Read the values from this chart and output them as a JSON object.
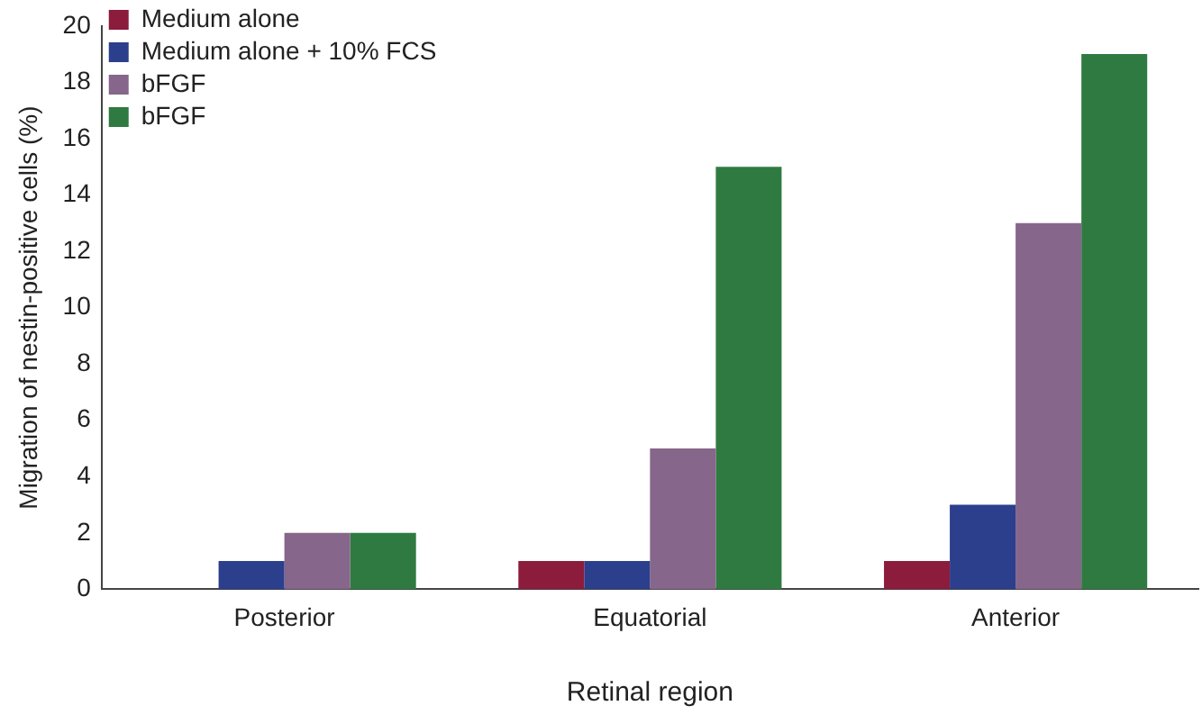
{
  "chart_data": {
    "type": "bar",
    "xlabel": "Retinal region",
    "ylabel": "Migration of nestin-positive cells (%)",
    "categories": [
      "Posterior",
      "Equatorial",
      "Anterior"
    ],
    "series": [
      {
        "name": "Medium alone",
        "color": "#8c1c3c",
        "values": [
          0,
          1,
          1
        ]
      },
      {
        "name": "Medium alone + 10% FCS",
        "color": "#2b3f8c",
        "values": [
          1,
          1,
          3
        ]
      },
      {
        "name": "bFGF",
        "color": "#86668a",
        "values": [
          2,
          5,
          13
        ]
      },
      {
        "name": "bFGF",
        "color": "#2f7a40",
        "values": [
          2,
          15,
          19
        ]
      }
    ],
    "ylim": [
      0,
      20
    ],
    "yticks": [
      0,
      2,
      4,
      6,
      8,
      10,
      12,
      14,
      16,
      18,
      20
    ],
    "grid": false,
    "legend": "top left"
  }
}
